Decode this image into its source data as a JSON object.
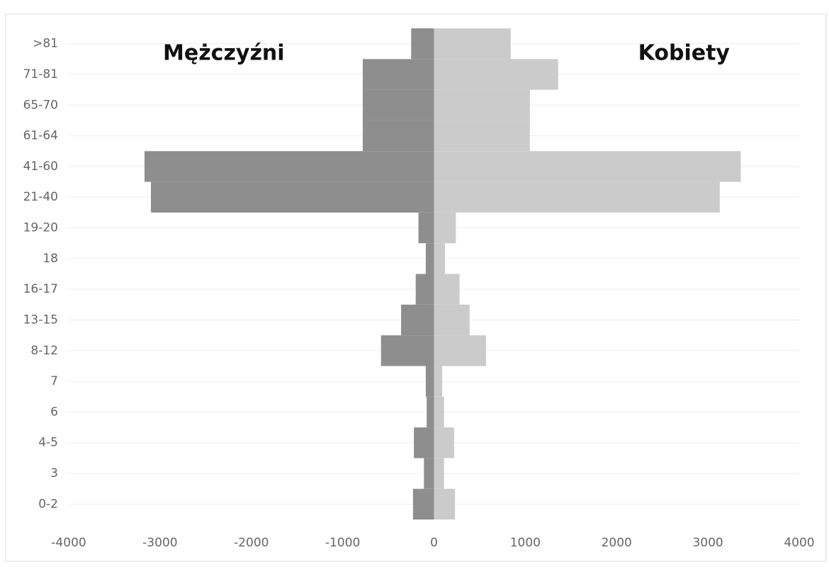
{
  "chart_data": {
    "type": "pyramid",
    "categories": [
      ">81",
      "71-81",
      "65-70",
      "61-64",
      "41-60",
      "21-40",
      "19-20",
      "18",
      "16-17",
      "13-15",
      "8-12",
      "7",
      "6",
      "4-5",
      "3",
      "0-2"
    ],
    "series": [
      {
        "name": "Mężczyźni",
        "color": "#8e8e8e",
        "values": [
          -250,
          -780,
          -780,
          -780,
          -3170,
          -3100,
          -170,
          -90,
          -200,
          -360,
          -580,
          -90,
          -80,
          -220,
          -110,
          -230
        ]
      },
      {
        "name": "Kobiety",
        "color": "#cbcbcb",
        "values": [
          840,
          1360,
          1050,
          1050,
          3360,
          3130,
          240,
          120,
          280,
          390,
          570,
          90,
          110,
          220,
          110,
          230
        ]
      }
    ],
    "xlim": [
      -4000,
      4000
    ],
    "xticks": [
      -4000,
      -3000,
      -2000,
      -1000,
      0,
      1000,
      2000,
      3000,
      4000
    ],
    "grid": true
  }
}
